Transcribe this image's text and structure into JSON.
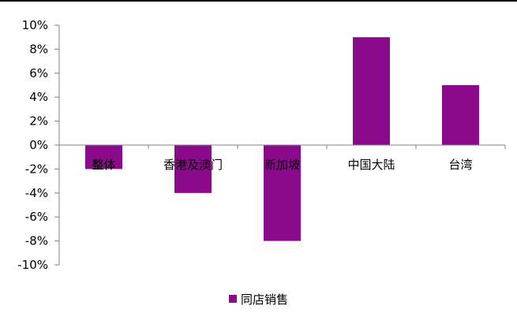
{
  "chart_data": {
    "type": "bar",
    "categories": [
      "整体",
      "香港及澳门",
      "新加坡",
      "中国大陆",
      "台湾"
    ],
    "series": [
      {
        "name": "同店销售",
        "values": [
          -2,
          -4,
          -8,
          9,
          5
        ]
      }
    ],
    "yticks": [
      "10%",
      "8%",
      "6%",
      "4%",
      "2%",
      "0%",
      "-2%",
      "-4%",
      "-6%",
      "-8%",
      "-10%"
    ],
    "ylim": [
      -10,
      10
    ],
    "grid": false,
    "legend": "bottom-center",
    "colors": {
      "bar": "#8B0A8B",
      "axis": "#808080"
    }
  }
}
